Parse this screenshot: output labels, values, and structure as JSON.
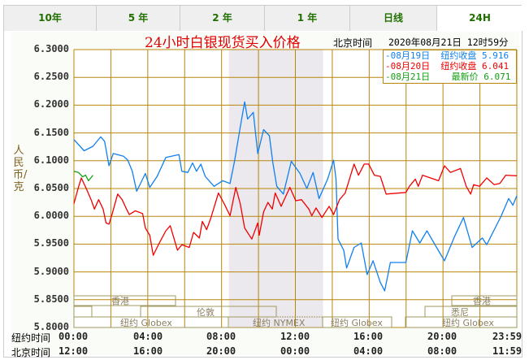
{
  "tabs": [
    "10年",
    "5 年",
    "2 年",
    "1 年",
    "日线",
    "24H"
  ],
  "active_tab": "24H",
  "header": {
    "title": "24小时白银现货买入价格",
    "tz_label": "北京时间",
    "datetime": "2020年08月21日 12时59分"
  },
  "legend": [
    {
      "text": "-08月19日  纽约收盘 5.916",
      "color": "#1080f0"
    },
    {
      "text": "-08月20日  纽约收盘 6.041",
      "color": "#f00000"
    },
    {
      "text": "-08月21日    最新价 6.071",
      "color": "#10a010"
    }
  ],
  "sessions": {
    "hongkong": "香港",
    "london": "伦敦",
    "sydney": "悉尼",
    "globex": "纽约 Globex",
    "nymex": "纽约 NYMEX"
  },
  "x_rows": {
    "ny_label": "纽约时间",
    "bj_label": "北京时间",
    "ny": [
      "00:00",
      "04:00",
      "08:00",
      "12:00",
      "16:00",
      "20:00",
      "23:59"
    ],
    "bj": [
      "12:00",
      "16:00",
      "20:00",
      "00:00",
      "04:00",
      "08:00",
      "11:59"
    ]
  },
  "chart_data": {
    "type": "line",
    "title": "24小时白银现货买入价格",
    "ylabel": "人民币/克",
    "xlabel": "纽约时间 / 北京时间",
    "xlim": [
      0,
      24
    ],
    "ylim": [
      5.8,
      6.3
    ],
    "yticks": [
      "6.3000",
      "6.2500",
      "6.2000",
      "6.1500",
      "6.1000",
      "6.0500",
      "6.0000",
      "5.9500",
      "5.9000",
      "5.8500",
      "5.8000"
    ],
    "grid": true,
    "legend_position": "top-right",
    "shaded_range_hours": [
      8.4,
      13.5
    ],
    "series": [
      {
        "name": "08月19日",
        "color": "#1080f0",
        "points": [
          [
            0,
            6.138
          ],
          [
            0.55,
            6.118
          ],
          [
            1.03,
            6.126
          ],
          [
            1.45,
            6.143
          ],
          [
            1.66,
            6.135
          ],
          [
            1.9,
            6.091
          ],
          [
            2.13,
            6.113
          ],
          [
            2.69,
            6.108
          ],
          [
            2.92,
            6.101
          ],
          [
            3.16,
            6.081
          ],
          [
            3.4,
            6.045
          ],
          [
            3.87,
            6.077
          ],
          [
            4.11,
            6.052
          ],
          [
            4.51,
            6.072
          ],
          [
            4.98,
            6.106
          ],
          [
            5.69,
            6.111
          ],
          [
            5.85,
            6.081
          ],
          [
            6.17,
            6.079
          ],
          [
            6.43,
            6.096
          ],
          [
            6.64,
            6.081
          ],
          [
            6.88,
            6.094
          ],
          [
            7.11,
            6.072
          ],
          [
            7.59,
            6.054
          ],
          [
            8.06,
            6.064
          ],
          [
            8.46,
            6.059
          ],
          [
            8.7,
            6.099
          ],
          [
            9.01,
            6.16
          ],
          [
            9.25,
            6.206
          ],
          [
            9.41,
            6.175
          ],
          [
            9.72,
            6.187
          ],
          [
            9.96,
            6.113
          ],
          [
            10.28,
            6.156
          ],
          [
            10.59,
            6.145
          ],
          [
            10.78,
            6.096
          ],
          [
            10.99,
            6.054
          ],
          [
            11.35,
            6.04
          ],
          [
            11.78,
            6.099
          ],
          [
            12.25,
            6.077
          ],
          [
            12.62,
            6.05
          ],
          [
            12.96,
            6.079
          ],
          [
            13.28,
            6.032
          ],
          [
            13.75,
            6.067
          ],
          [
            14.07,
            6.101
          ],
          [
            14.2,
            6.067
          ],
          [
            14.31,
            5.959
          ],
          [
            14.62,
            5.939
          ],
          [
            14.78,
            5.907
          ],
          [
            15.18,
            5.944
          ],
          [
            15.57,
            5.952
          ],
          [
            15.89,
            5.895
          ],
          [
            16.21,
            5.92
          ],
          [
            16.6,
            5.881
          ],
          [
            16.84,
            5.866
          ],
          [
            17.15,
            5.917
          ],
          [
            17.99,
            5.917
          ],
          [
            18.34,
            5.974
          ],
          [
            18.74,
            5.952
          ],
          [
            19.13,
            5.974
          ],
          [
            19.6,
            5.947
          ],
          [
            20.08,
            5.92
          ],
          [
            20.63,
            5.964
          ],
          [
            21.11,
            5.998
          ],
          [
            21.58,
            5.944
          ],
          [
            22.13,
            5.961
          ],
          [
            22.37,
            5.949
          ],
          [
            23.16,
            6.001
          ],
          [
            23.56,
            6.032
          ],
          [
            23.79,
            6.02
          ],
          [
            24,
            6.037
          ]
        ]
      },
      {
        "name": "08月20日",
        "color": "#f00000",
        "points": [
          [
            0,
            6.023
          ],
          [
            0.24,
            6.052
          ],
          [
            0.4,
            6.069
          ],
          [
            0.71,
            6.047
          ],
          [
            0.95,
            6.028
          ],
          [
            1.11,
            6.013
          ],
          [
            1.34,
            6.03
          ],
          [
            1.58,
            6.013
          ],
          [
            1.74,
            5.988
          ],
          [
            1.9,
            5.986
          ],
          [
            2.06,
            6.003
          ],
          [
            2.37,
            6.04
          ],
          [
            2.61,
            6.03
          ],
          [
            2.85,
            6.013
          ],
          [
            3,
            6.003
          ],
          [
            3.32,
            6.01
          ],
          [
            3.72,
            6.005
          ],
          [
            3.87,
            5.979
          ],
          [
            4.11,
            5.966
          ],
          [
            4.3,
            5.93
          ],
          [
            4.58,
            5.949
          ],
          [
            4.98,
            5.974
          ],
          [
            5.22,
            5.983
          ],
          [
            5.61,
            5.939
          ],
          [
            5.85,
            5.949
          ],
          [
            6.25,
            5.944
          ],
          [
            6.48,
            5.971
          ],
          [
            6.8,
            5.961
          ],
          [
            6.96,
            5.991
          ],
          [
            7.19,
            5.976
          ],
          [
            7.43,
            5.998
          ],
          [
            7.83,
            6.042
          ],
          [
            8.14,
            6.023
          ],
          [
            8.46,
            6.001
          ],
          [
            8.77,
            6.052
          ],
          [
            9.01,
            6.023
          ],
          [
            9.25,
            5.979
          ],
          [
            9.64,
            5.959
          ],
          [
            9.96,
            5.988
          ],
          [
            10.04,
            5.966
          ],
          [
            10.28,
            6.008
          ],
          [
            10.51,
            6.025
          ],
          [
            10.75,
            6.013
          ],
          [
            10.91,
            6.042
          ],
          [
            11.23,
            6.018
          ],
          [
            11.7,
            6.052
          ],
          [
            12.02,
            6.028
          ],
          [
            12.33,
            6.03
          ],
          [
            12.73,
            6.013
          ],
          [
            12.89,
            6.001
          ],
          [
            13.12,
            6.015
          ],
          [
            13.44,
            5.998
          ],
          [
            13.83,
            6.018
          ],
          [
            14.07,
            6.003
          ],
          [
            14.39,
            6.03
          ],
          [
            14.7,
            6.042
          ],
          [
            14.86,
            6.059
          ],
          [
            15.18,
            6.094
          ],
          [
            15.42,
            6.074
          ],
          [
            15.73,
            6.094
          ],
          [
            15.97,
            6.094
          ],
          [
            16.28,
            6.074
          ],
          [
            16.6,
            6.072
          ],
          [
            16.92,
            6.04
          ],
          [
            17.99,
            6.043
          ],
          [
            18.18,
            6.054
          ],
          [
            18.5,
            6.067
          ],
          [
            18.66,
            6.054
          ],
          [
            18.89,
            6.074
          ],
          [
            19.76,
            6.064
          ],
          [
            20.08,
            6.091
          ],
          [
            20.4,
            6.079
          ],
          [
            20.95,
            6.086
          ],
          [
            21.26,
            6.054
          ],
          [
            21.5,
            6.04
          ],
          [
            21.66,
            6.057
          ],
          [
            21.98,
            6.054
          ],
          [
            22.37,
            6.069
          ],
          [
            22.77,
            6.057
          ],
          [
            23.08,
            6.059
          ],
          [
            23.4,
            6.074
          ],
          [
            24,
            6.073
          ]
        ]
      },
      {
        "name": "08月21日",
        "color": "#10a010",
        "points": [
          [
            0,
            6.081
          ],
          [
            0.24,
            6.079
          ],
          [
            0.47,
            6.071
          ],
          [
            0.63,
            6.074
          ],
          [
            0.79,
            6.064
          ],
          [
            1.03,
            6.074
          ]
        ]
      }
    ]
  }
}
